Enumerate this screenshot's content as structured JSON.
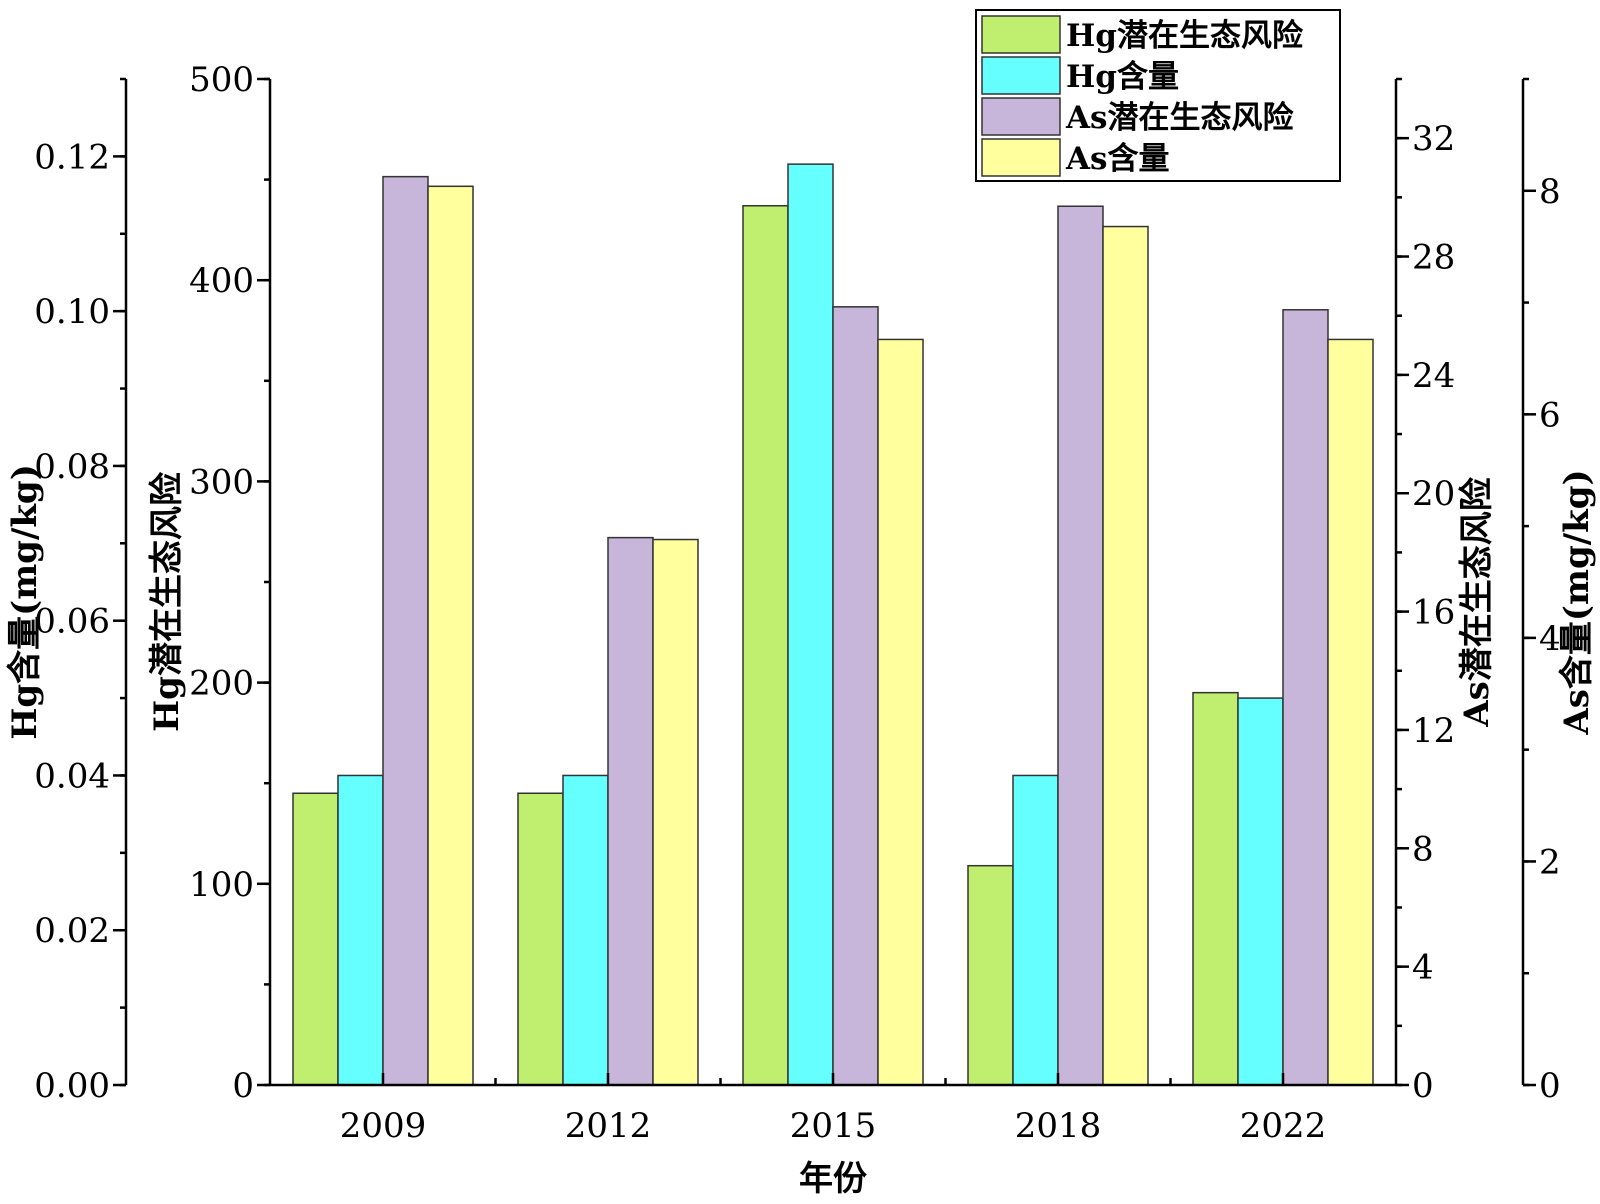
{
  "chart_data": {
    "type": "bar",
    "xlabel": "年份",
    "categories": [
      "2009",
      "2012",
      "2015",
      "2018",
      "2022"
    ],
    "series": [
      {
        "name": "Hg潜在生态风险",
        "color": "#c0ee6e",
        "axis": "hg_risk",
        "values": [
          145,
          145,
          437,
          109,
          195
        ]
      },
      {
        "name": "Hg含量",
        "color": "#66ffff",
        "axis": "hg_content",
        "values": [
          0.04,
          0.04,
          0.119,
          0.04,
          0.05
        ]
      },
      {
        "name": "As潜在生态风险",
        "color": "#c8b6da",
        "axis": "as_risk",
        "values": [
          30.7,
          18.5,
          26.3,
          29.7,
          26.2
        ]
      },
      {
        "name": "As含量",
        "color": "#ffff9e",
        "axis": "as_content",
        "values": [
          8.04,
          4.88,
          6.67,
          7.68,
          6.67
        ]
      }
    ],
    "axes": {
      "hg_content": {
        "label": "Hg含量(mg/kg)",
        "ylim": [
          0,
          0.13
        ],
        "ticks": [
          "0.00",
          "0.02",
          "0.04",
          "0.06",
          "0.08",
          "0.10",
          "0.12"
        ],
        "minor_step": 0.01
      },
      "hg_risk": {
        "label": "Hg潜在生态风险",
        "ylim": [
          0,
          500
        ],
        "ticks": [
          "0",
          "100",
          "200",
          "300",
          "400",
          "500"
        ],
        "minor_step": 50
      },
      "as_risk": {
        "label": "As潜在生态风险",
        "ylim": [
          0,
          34
        ],
        "ticks": [
          "0",
          "4",
          "8",
          "12",
          "16",
          "20",
          "24",
          "28",
          "32"
        ],
        "minor_step": 2
      },
      "as_content": {
        "label": "As含量(mg/kg)",
        "ylim": [
          0,
          9
        ],
        "ticks": [
          "0",
          "2",
          "4",
          "6",
          "8"
        ],
        "minor_step": 1
      }
    },
    "legend": {
      "position": "top-right"
    }
  }
}
